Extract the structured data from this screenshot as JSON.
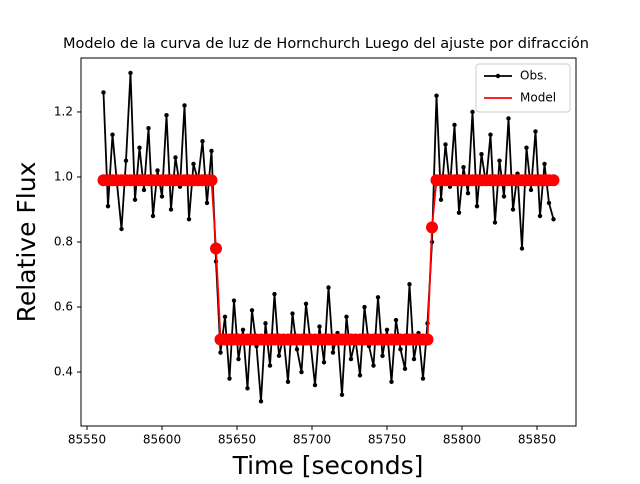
{
  "chart_data": {
    "type": "line",
    "title": "Modelo de la curva de luz de Hornchurch Luego del ajuste por difracción",
    "x_label": "Time [seconds]",
    "y_label": "Relative Flux",
    "x": [
      85561,
      85564,
      85567,
      85570,
      85573,
      85576,
      85579,
      85582,
      85585,
      85588,
      85591,
      85594,
      85597,
      85600,
      85603,
      85606,
      85609,
      85612,
      85615,
      85618,
      85621,
      85624,
      85627,
      85630,
      85633,
      85636,
      85639,
      85642,
      85645,
      85648,
      85651,
      85654,
      85657,
      85660,
      85663,
      85666,
      85669,
      85672,
      85675,
      85678,
      85681,
      85684,
      85687,
      85690,
      85693,
      85696,
      85699,
      85702,
      85705,
      85708,
      85711,
      85714,
      85717,
      85720,
      85723,
      85726,
      85729,
      85732,
      85735,
      85738,
      85741,
      85744,
      85747,
      85750,
      85753,
      85756,
      85759,
      85762,
      85765,
      85768,
      85771,
      85774,
      85777,
      85780,
      85783,
      85786,
      85789,
      85792,
      85795,
      85798,
      85801,
      85804,
      85807,
      85810,
      85813,
      85816,
      85819,
      85822,
      85825,
      85828,
      85831,
      85834,
      85837,
      85840,
      85843,
      85846,
      85849,
      85852,
      85855,
      85858,
      85861
    ],
    "series": [
      {
        "name": "Obs.",
        "color": "#000000",
        "marker": "dot",
        "values": [
          1.26,
          0.91,
          1.13,
          0.98,
          0.84,
          1.05,
          1.32,
          0.93,
          1.09,
          0.96,
          1.15,
          0.88,
          1.02,
          0.94,
          1.19,
          0.9,
          1.06,
          0.97,
          1.22,
          0.87,
          1.04,
          0.99,
          1.11,
          0.92,
          1.08,
          0.74,
          0.46,
          0.57,
          0.38,
          0.62,
          0.44,
          0.53,
          0.35,
          0.59,
          0.48,
          0.31,
          0.55,
          0.42,
          0.64,
          0.45,
          0.51,
          0.37,
          0.58,
          0.47,
          0.4,
          0.61,
          0.49,
          0.36,
          0.54,
          0.43,
          0.66,
          0.46,
          0.52,
          0.33,
          0.57,
          0.44,
          0.5,
          0.39,
          0.6,
          0.48,
          0.42,
          0.63,
          0.45,
          0.53,
          0.37,
          0.56,
          0.47,
          0.41,
          0.67,
          0.44,
          0.52,
          0.38,
          0.55,
          0.8,
          1.25,
          0.93,
          1.1,
          0.97,
          1.16,
          0.89,
          1.03,
          0.95,
          1.2,
          0.91,
          1.07,
          0.98,
          1.13,
          0.86,
          1.05,
          0.94,
          1.18,
          0.9,
          1.01,
          0.78,
          1.09,
          0.96,
          1.14,
          0.88,
          1.04,
          0.92,
          0.87
        ]
      },
      {
        "name": "Model",
        "color": "#ff0000",
        "marker": "circle",
        "values": [
          0.99,
          0.99,
          0.99,
          0.99,
          0.99,
          0.99,
          0.99,
          0.99,
          0.99,
          0.99,
          0.99,
          0.99,
          0.99,
          0.99,
          0.99,
          0.99,
          0.99,
          0.99,
          0.99,
          0.99,
          0.99,
          0.99,
          0.99,
          0.99,
          0.99,
          0.78,
          0.5,
          0.5,
          0.5,
          0.5,
          0.5,
          0.5,
          0.5,
          0.5,
          0.5,
          0.5,
          0.5,
          0.5,
          0.5,
          0.5,
          0.5,
          0.5,
          0.5,
          0.5,
          0.5,
          0.5,
          0.5,
          0.5,
          0.5,
          0.5,
          0.5,
          0.5,
          0.5,
          0.5,
          0.5,
          0.5,
          0.5,
          0.5,
          0.5,
          0.5,
          0.5,
          0.5,
          0.5,
          0.5,
          0.5,
          0.5,
          0.5,
          0.5,
          0.5,
          0.5,
          0.5,
          0.5,
          0.5,
          0.845,
          0.99,
          0.99,
          0.99,
          0.99,
          0.99,
          0.99,
          0.99,
          0.99,
          0.99,
          0.99,
          0.99,
          0.99,
          0.99,
          0.99,
          0.99,
          0.99,
          0.99,
          0.99,
          0.99,
          0.99,
          0.99,
          0.99,
          0.99,
          0.99,
          0.99,
          0.99,
          0.99
        ]
      }
    ],
    "xlim": [
      85546,
      85876
    ],
    "xticks": [
      85550,
      85600,
      85650,
      85700,
      85750,
      85800,
      85850
    ],
    "ylim": [
      0.234,
      1.366
    ],
    "yticks": [
      0.4,
      0.6,
      0.8,
      1.0,
      1.2
    ],
    "legend": "upper right"
  }
}
